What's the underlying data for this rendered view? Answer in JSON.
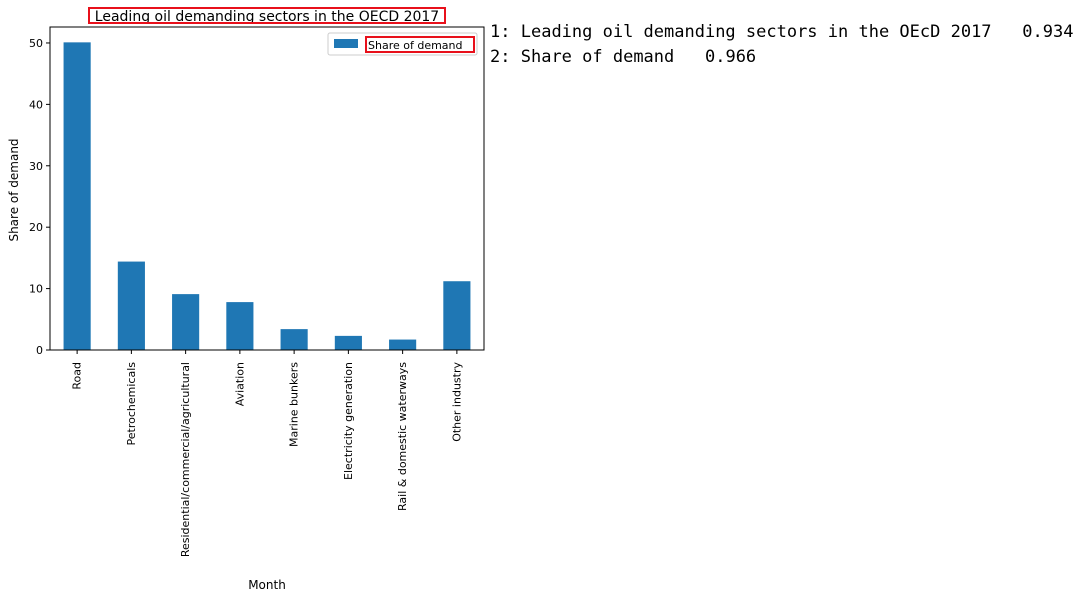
{
  "chart_data": {
    "type": "bar",
    "title": "Leading oil demanding sectors in the OECD 2017",
    "xlabel": "Month",
    "ylabel": "Share of demand",
    "categories": [
      "Road",
      "Petrochemicals",
      "Residential/commercial/agricultural",
      "Aviation",
      "Marine bunkers",
      "Electricity generation",
      "Rail & domestic waterways",
      "Other industry"
    ],
    "series": [
      {
        "name": "Share of demand",
        "values": [
          50.1,
          14.4,
          9.1,
          7.8,
          3.4,
          2.3,
          1.7,
          11.2
        ],
        "color": "#1f77b4"
      }
    ],
    "ylim": [
      0,
      52.6
    ],
    "yticks": [
      0,
      10,
      20,
      30,
      40,
      50
    ],
    "grid": false,
    "legend_position": "top-right",
    "highlight_color": "#e8101b"
  },
  "ocr_results": [
    {
      "index": "1:",
      "text": "Leading oil demanding sectors in the OEcD 2017",
      "score": "0.934"
    },
    {
      "index": "2:",
      "text": "Share of demand",
      "score": "0.966"
    }
  ]
}
